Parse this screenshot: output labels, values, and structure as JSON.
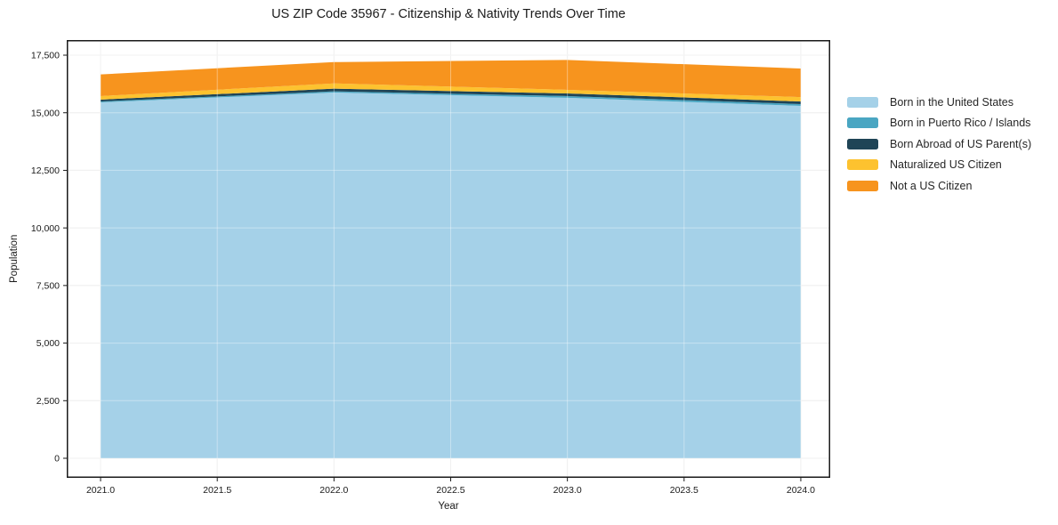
{
  "chart_data": {
    "type": "area",
    "stacked": true,
    "title": "US ZIP Code 35967 - Citizenship & Nativity Trends Over Time",
    "xlabel": "Year",
    "ylabel": "Population",
    "x": [
      2021,
      2022,
      2023,
      2024
    ],
    "series": [
      {
        "name": "Born in the United States",
        "color": "#a5d1e8",
        "values": [
          15450,
          15880,
          15650,
          15300
        ]
      },
      {
        "name": "Born in Puerto Rico / Islands",
        "color": "#4aa6c2",
        "values": [
          40,
          50,
          75,
          75
        ]
      },
      {
        "name": "Born Abroad of US Parent(s)",
        "color": "#1f4456",
        "values": [
          80,
          115,
          115,
          115
        ]
      },
      {
        "name": "Naturalized US Citizen",
        "color": "#fdc22f",
        "values": [
          155,
          230,
          155,
          190
        ]
      },
      {
        "name": "Not a US Citizen",
        "color": "#f7941e",
        "values": [
          940,
          925,
          1300,
          1240
        ]
      }
    ],
    "totals": [
      16665,
      17200,
      17295,
      16920
    ],
    "xticks": {
      "values": [
        2021,
        2021.5,
        2022,
        2022.5,
        2023,
        2023.5,
        2024
      ],
      "labels": [
        "2021.0",
        "2021.5",
        "2022.0",
        "2022.5",
        "2023.0",
        "2023.5",
        "2024.0"
      ]
    },
    "yticks": {
      "values": [
        0,
        2500,
        5000,
        7500,
        10000,
        12500,
        15000,
        17500
      ],
      "labels": [
        "0",
        "2,500",
        "5,000",
        "7,500",
        "10,000",
        "12,500",
        "15,000",
        "17,500"
      ]
    },
    "xlim": [
      2020.855,
      2024.126
    ],
    "ylim": [
      -850,
      18157
    ],
    "grid": true,
    "legend_position": "right",
    "colors": {
      "grid": "#e7e7e7",
      "grid_overlay": "rgba(255,255,255,0.38)",
      "spine": "#1a1a1a",
      "text": "#1a1a1a",
      "background": "#ffffff"
    }
  }
}
